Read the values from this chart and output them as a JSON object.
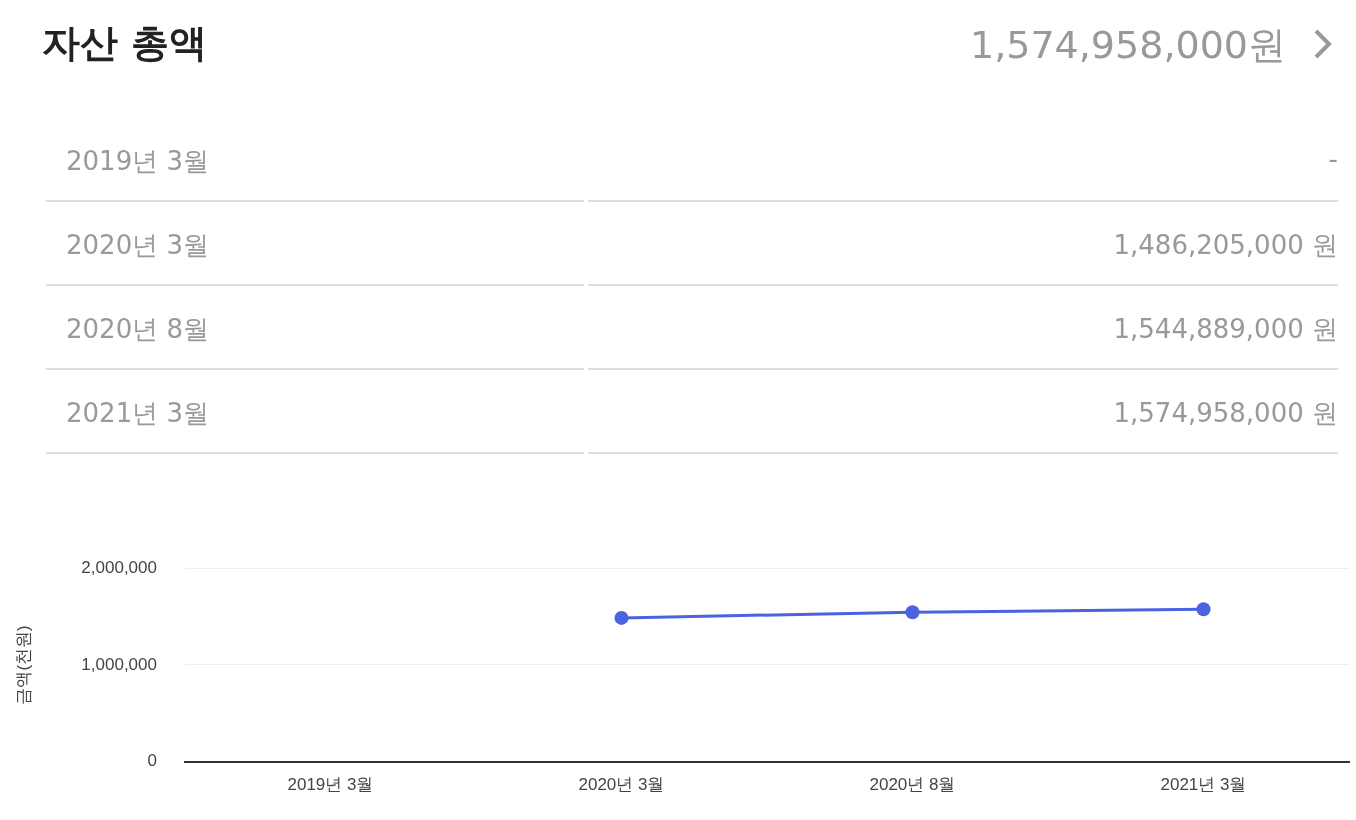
{
  "chart_data": {
    "type": "line",
    "title": "자산 총액",
    "ylabel": "금액(천원)",
    "annotations": [
      "1,574,958,000원",
      "2019년 3월",
      "-",
      "2020년 3월",
      "1,486,205,000 원",
      "2020년 8월",
      "1,544,889,000 원",
      "2021년 3월",
      "1,574,958,000 원"
    ],
    "categories": [
      "2019년 3월",
      "2020년 3월",
      "2020년 8월",
      "2021년 3월"
    ],
    "series": [
      {
        "color": "#4a63e0",
        "values": [
          null,
          1486205,
          1544889,
          1574958
        ]
      }
    ],
    "ylim": [
      0,
      2000000
    ],
    "yticks": [
      {
        "value": 0,
        "label": "0"
      },
      {
        "value": 1000000,
        "label": "1,000,000"
      },
      {
        "value": 2000000,
        "label": "2,000,000"
      }
    ],
    "grid": "y",
    "marker": "circle",
    "line_style": "solid",
    "legend": false
  }
}
